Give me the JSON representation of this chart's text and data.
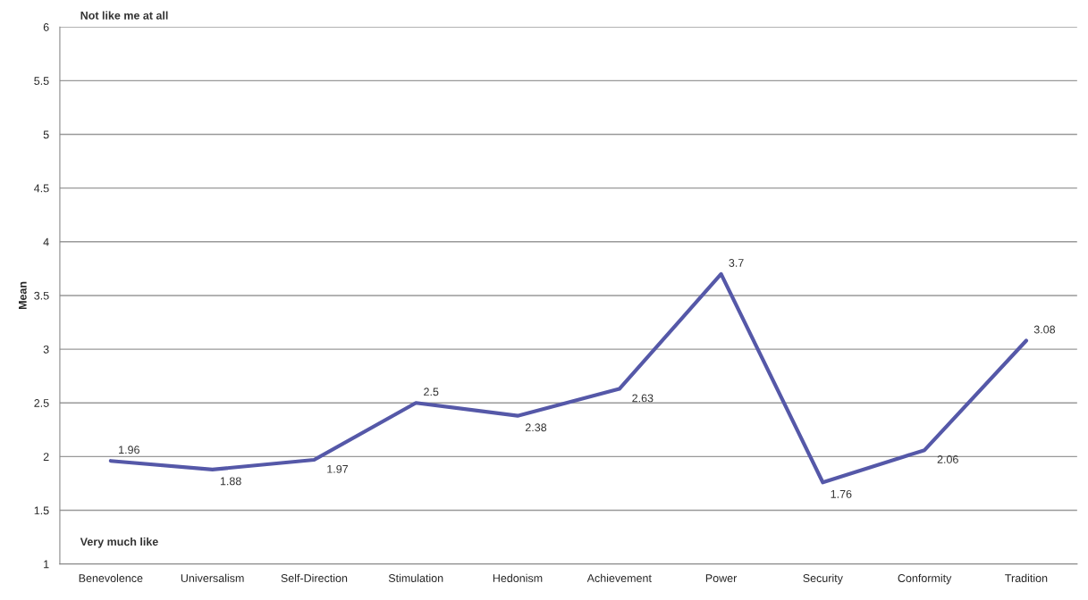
{
  "chart_data": {
    "type": "line",
    "ylabel": "Mean",
    "categories": [
      "Benevolence",
      "Universalism",
      "Self-Direction",
      "Stimulation",
      "Hedonism",
      "Achievement",
      "Power",
      "Security",
      "Conformity",
      "Tradition"
    ],
    "series": [
      {
        "color": "#5558a8",
        "values": [
          1.96,
          1.88,
          1.97,
          2.5,
          2.38,
          2.63,
          3.7,
          1.76,
          2.06,
          3.08
        ]
      }
    ],
    "ylim": [
      1,
      6
    ],
    "yticks": [
      1,
      1.5,
      2,
      2.5,
      3,
      3.5,
      4,
      4.5,
      5,
      5.5,
      6
    ],
    "grid": "y",
    "data_labels": true,
    "marker": "none",
    "line_style": "solid",
    "annotations": [
      "Not like me at all",
      "Very much like"
    ]
  }
}
